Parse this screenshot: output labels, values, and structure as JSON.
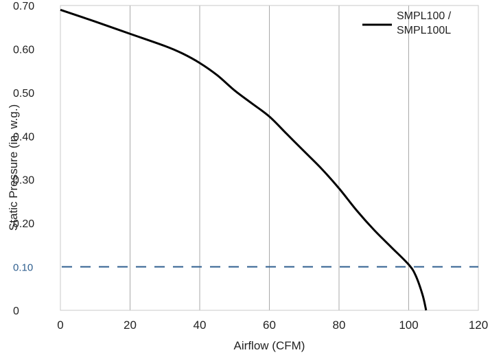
{
  "chart_data": {
    "type": "line",
    "xlabel": "Airflow (CFM)",
    "ylabel": "Static Pressure (in. w.g.)",
    "xlim": [
      0,
      120
    ],
    "ylim": [
      0,
      0.7
    ],
    "xticks": [
      0,
      20,
      40,
      60,
      80,
      100,
      120
    ],
    "xtick_labels": [
      "0",
      "20",
      "40",
      "60",
      "80",
      "100",
      "120"
    ],
    "yticks": [
      0,
      0.1,
      0.2,
      0.3,
      0.4,
      0.5,
      0.6,
      0.7
    ],
    "ytick_labels": [
      "0",
      "0.10",
      "0.20",
      "0.30",
      "0.40",
      "0.50",
      "0.60",
      "0.70"
    ],
    "highlight_ytick": "0.10",
    "grid": "vertical",
    "legend_position": "top-right",
    "series": [
      {
        "name": "SMPL100 / SMPL100L",
        "color": "#000000",
        "x": [
          0,
          10,
          20,
          30,
          35,
          40,
          45,
          50,
          55,
          60,
          65,
          70,
          75,
          80,
          85,
          90,
          95,
          100,
          102,
          104,
          105
        ],
        "y": [
          0.69,
          0.663,
          0.635,
          0.607,
          0.59,
          0.568,
          0.54,
          0.505,
          0.475,
          0.445,
          0.405,
          0.365,
          0.325,
          0.28,
          0.23,
          0.185,
          0.145,
          0.105,
          0.08,
          0.035,
          0.0
        ]
      }
    ],
    "reference_lines": [
      {
        "y": 0.1,
        "style": "dashed",
        "color": "#2f5f8f"
      }
    ]
  }
}
